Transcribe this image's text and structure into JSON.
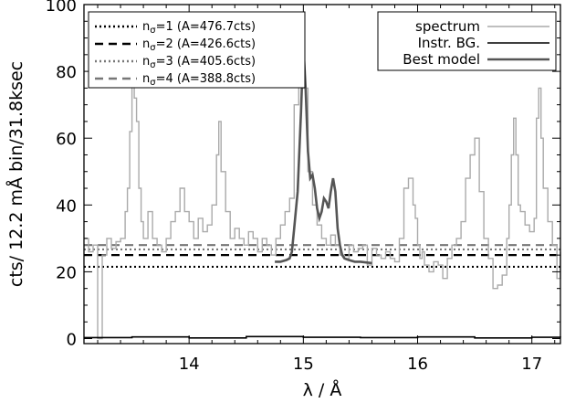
{
  "chart_data": {
    "type": "line",
    "xlabel": "λ / Å",
    "ylabel": "cts/ 12.2 mÅ bin/31.8ksec",
    "xlim": [
      13.08,
      17.25
    ],
    "ylim": [
      -1.5,
      100
    ],
    "xticks": [
      14,
      15,
      16,
      17
    ],
    "yticks": [
      0,
      20,
      40,
      60,
      80,
      100
    ],
    "grid": false,
    "legend_left": {
      "placement": "top-left",
      "entries": [
        {
          "label": "n",
          "sub": "σ",
          "eq": "=1 (A=476.7cts)",
          "style": "dotted",
          "color": "#000000"
        },
        {
          "label": "n",
          "sub": "σ",
          "eq": "=2 (A=426.6cts)",
          "style": "dashed",
          "color": "#000000"
        },
        {
          "label": "n",
          "sub": "σ",
          "eq": "=3 (A=405.6cts)",
          "style": "dotted",
          "color": "#777777"
        },
        {
          "label": "n",
          "sub": "σ",
          "eq": "=4 (A=388.8cts)",
          "style": "dashed",
          "color": "#777777"
        }
      ]
    },
    "legend_right": {
      "placement": "top-right",
      "entries": [
        {
          "label": "spectrum",
          "color": "#aaaaaa"
        },
        {
          "label": "Instr. BG.",
          "color": "#000000"
        },
        {
          "label": "Best model",
          "color": "#555555"
        }
      ]
    },
    "series": [
      {
        "name": "spectrum",
        "color": "#aaaaaa",
        "x": [
          13.08,
          13.12,
          13.16,
          13.2,
          13.24,
          13.28,
          13.32,
          13.36,
          13.4,
          13.44,
          13.46,
          13.48,
          13.5,
          13.52,
          13.54,
          13.56,
          13.58,
          13.6,
          13.64,
          13.68,
          13.72,
          13.76,
          13.8,
          13.84,
          13.88,
          13.92,
          13.96,
          14.0,
          14.04,
          14.08,
          14.12,
          14.16,
          14.2,
          14.24,
          14.26,
          14.28,
          14.32,
          14.36,
          14.4,
          14.44,
          14.48,
          14.52,
          14.56,
          14.6,
          14.64,
          14.68,
          14.72,
          14.76,
          14.8,
          14.84,
          14.88,
          14.92,
          14.96,
          15.0,
          15.04,
          15.08,
          15.12,
          15.16,
          15.2,
          15.24,
          15.28,
          15.32,
          15.36,
          15.4,
          15.44,
          15.48,
          15.52,
          15.56,
          15.6,
          15.64,
          15.68,
          15.72,
          15.76,
          15.8,
          15.84,
          15.88,
          15.92,
          15.96,
          15.98,
          16.0,
          16.02,
          16.04,
          16.06,
          16.1,
          16.14,
          16.18,
          16.22,
          16.26,
          16.3,
          16.34,
          16.38,
          16.42,
          16.46,
          16.5,
          16.54,
          16.58,
          16.62,
          16.66,
          16.7,
          16.74,
          16.78,
          16.8,
          16.82,
          16.84,
          16.86,
          16.88,
          16.9,
          16.94,
          16.98,
          17.02,
          17.04,
          17.06,
          17.08,
          17.1,
          17.14,
          17.18,
          17.22,
          17.25
        ],
        "y": [
          30,
          26,
          28,
          0,
          25,
          30,
          27,
          29,
          30,
          38,
          45,
          62,
          80,
          72,
          65,
          45,
          35,
          30,
          38,
          30,
          28,
          26,
          30,
          35,
          38,
          45,
          38,
          35,
          30,
          36,
          32,
          34,
          40,
          55,
          65,
          50,
          38,
          30,
          33,
          30,
          28,
          32,
          30,
          26,
          30,
          28,
          25,
          30,
          34,
          38,
          42,
          70,
          85,
          75,
          50,
          40,
          34,
          30,
          28,
          31,
          28,
          25,
          24,
          28,
          26,
          27,
          28,
          22,
          27,
          25,
          24,
          26,
          24,
          23,
          30,
          45,
          48,
          40,
          36,
          28,
          24,
          26,
          22,
          20,
          23,
          22,
          18,
          24,
          28,
          30,
          35,
          48,
          55,
          60,
          44,
          30,
          24,
          15,
          16,
          19,
          30,
          40,
          55,
          66,
          55,
          40,
          38,
          34,
          32,
          36,
          66,
          75,
          60,
          45,
          35,
          28,
          18,
          26
        ],
        "note": ""
      },
      {
        "name": "Instr. BG.",
        "color": "#000000",
        "x": [
          13.08,
          13.5,
          14.0,
          14.5,
          15.0,
          15.5,
          16.0,
          16.5,
          17.0,
          17.25
        ],
        "y": [
          0.3,
          0.5,
          0.2,
          0.6,
          0.4,
          0.3,
          0.5,
          0.2,
          0.4,
          0.3
        ]
      },
      {
        "name": "Best model",
        "color": "#555555",
        "x": [
          14.75,
          14.8,
          14.85,
          14.88,
          14.9,
          14.92,
          14.95,
          14.98,
          15.0,
          15.02,
          15.04,
          15.06,
          15.08,
          15.1,
          15.12,
          15.14,
          15.16,
          15.18,
          15.2,
          15.22,
          15.24,
          15.26,
          15.28,
          15.3,
          15.32,
          15.34,
          15.36,
          15.4,
          15.45,
          15.5,
          15.55,
          15.6
        ],
        "y": [
          23,
          23,
          23.5,
          24,
          26,
          33,
          44,
          68,
          88,
          75,
          56,
          48,
          49,
          45,
          39,
          36,
          38,
          42,
          41,
          39,
          44,
          48,
          44,
          33,
          28,
          25,
          24,
          23.5,
          23,
          23,
          22.8,
          22.6
        ]
      }
    ],
    "hlines": [
      {
        "name": "n_σ=1",
        "y": 21.5,
        "style": "dotted",
        "color": "#000000"
      },
      {
        "name": "n_σ=2",
        "y": 25.0,
        "style": "dashed",
        "color": "#000000"
      },
      {
        "name": "n_σ=3",
        "y": 26.7,
        "style": "dotted",
        "color": "#777777"
      },
      {
        "name": "n_σ=4",
        "y": 28.0,
        "style": "dashed",
        "color": "#777777"
      }
    ]
  }
}
